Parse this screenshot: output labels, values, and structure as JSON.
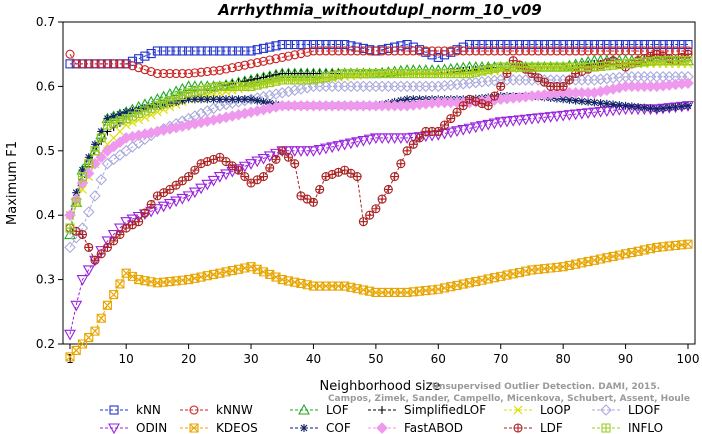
{
  "chart_data": {
    "type": "line",
    "title": "Arrhythmia_withoutdupl_norm_10_v09",
    "xlabel": "Neighborhood size",
    "ylabel": "Maximum F1",
    "xlim": [
      1,
      100
    ],
    "ylim": [
      0.2,
      0.7
    ],
    "xticks": [
      1,
      10,
      20,
      30,
      40,
      50,
      60,
      70,
      80,
      90,
      100
    ],
    "yticks": [
      0.2,
      0.3,
      0.4,
      0.5,
      0.6,
      0.7
    ],
    "grid": false,
    "legend_position": "bottom",
    "watermark": [
      "Unsupervised Outlier Detection. DAMI, 2015.",
      "Campos, Zimek, Sander, Campello, Micenkova, Schubert, Assent, Houle"
    ],
    "series": [
      {
        "name": "kNN",
        "color": "#2233cc",
        "marker": "square",
        "x": [
          1,
          5,
          10,
          15,
          20,
          25,
          30,
          35,
          40,
          45,
          50,
          55,
          60,
          65,
          70,
          75,
          80,
          85,
          90,
          95,
          100
        ],
        "y": [
          0.635,
          0.635,
          0.635,
          0.655,
          0.655,
          0.655,
          0.655,
          0.665,
          0.665,
          0.665,
          0.655,
          0.665,
          0.645,
          0.665,
          0.665,
          0.665,
          0.665,
          0.665,
          0.665,
          0.665,
          0.665
        ]
      },
      {
        "name": "kNNW",
        "color": "#cc2222",
        "marker": "circle",
        "x": [
          1,
          2,
          5,
          10,
          15,
          20,
          25,
          30,
          35,
          40,
          45,
          50,
          55,
          60,
          65,
          70,
          75,
          80,
          85,
          90,
          95,
          100
        ],
        "y": [
          0.65,
          0.635,
          0.635,
          0.635,
          0.62,
          0.62,
          0.625,
          0.635,
          0.645,
          0.655,
          0.655,
          0.655,
          0.655,
          0.655,
          0.655,
          0.655,
          0.655,
          0.655,
          0.655,
          0.655,
          0.655,
          0.655
        ]
      },
      {
        "name": "LOF",
        "color": "#22aa22",
        "marker": "triangle",
        "x": [
          1,
          3,
          5,
          7,
          10,
          15,
          20,
          25,
          30,
          35,
          40,
          45,
          50,
          55,
          60,
          65,
          70,
          75,
          80,
          85,
          90,
          95,
          100
        ],
        "y": [
          0.37,
          0.47,
          0.5,
          0.55,
          0.56,
          0.58,
          0.6,
          0.6,
          0.61,
          0.62,
          0.62,
          0.62,
          0.62,
          0.625,
          0.625,
          0.63,
          0.63,
          0.63,
          0.63,
          0.64,
          0.64,
          0.64,
          0.64
        ]
      },
      {
        "name": "SimplifiedLOF",
        "color": "#000000",
        "marker": "plus",
        "x": [
          1,
          3,
          5,
          7,
          10,
          15,
          20,
          25,
          30,
          35,
          40,
          45,
          50,
          55,
          60,
          65,
          70,
          75,
          80,
          85,
          90,
          95,
          100
        ],
        "y": [
          0.4,
          0.45,
          0.5,
          0.53,
          0.55,
          0.57,
          0.59,
          0.6,
          0.61,
          0.62,
          0.62,
          0.62,
          0.62,
          0.62,
          0.62,
          0.625,
          0.63,
          0.63,
          0.63,
          0.635,
          0.635,
          0.64,
          0.64
        ]
      },
      {
        "name": "LoOP",
        "color": "#dddd00",
        "marker": "x",
        "x": [
          1,
          3,
          5,
          7,
          10,
          15,
          20,
          25,
          30,
          35,
          40,
          45,
          50,
          55,
          60,
          65,
          70,
          75,
          80,
          85,
          90,
          95,
          100
        ],
        "y": [
          0.4,
          0.44,
          0.48,
          0.51,
          0.54,
          0.56,
          0.58,
          0.59,
          0.6,
          0.61,
          0.61,
          0.615,
          0.62,
          0.62,
          0.62,
          0.62,
          0.625,
          0.63,
          0.63,
          0.63,
          0.635,
          0.635,
          0.635
        ]
      },
      {
        "name": "LDOF",
        "color": "#aaaadd",
        "marker": "diamond",
        "x": [
          1,
          3,
          5,
          7,
          10,
          15,
          20,
          25,
          30,
          35,
          40,
          45,
          50,
          55,
          60,
          65,
          70,
          75,
          80,
          85,
          90,
          95,
          100
        ],
        "y": [
          0.35,
          0.38,
          0.43,
          0.48,
          0.5,
          0.53,
          0.55,
          0.57,
          0.58,
          0.59,
          0.6,
          0.6,
          0.6,
          0.6,
          0.6,
          0.605,
          0.61,
          0.61,
          0.61,
          0.61,
          0.615,
          0.615,
          0.615
        ]
      },
      {
        "name": "ODIN",
        "color": "#9922dd",
        "marker": "triangle-down",
        "x": [
          1,
          2,
          3,
          5,
          7,
          10,
          15,
          20,
          25,
          30,
          35,
          40,
          45,
          50,
          55,
          60,
          65,
          70,
          75,
          80,
          85,
          90,
          95,
          100
        ],
        "y": [
          0.215,
          0.26,
          0.3,
          0.33,
          0.36,
          0.39,
          0.41,
          0.43,
          0.46,
          0.48,
          0.5,
          0.5,
          0.51,
          0.52,
          0.52,
          0.525,
          0.535,
          0.545,
          0.55,
          0.555,
          0.56,
          0.565,
          0.565,
          0.57
        ]
      },
      {
        "name": "KDEOS",
        "color": "#e8a500",
        "marker": "square-x",
        "x": [
          1,
          2,
          3,
          5,
          7,
          10,
          12,
          15,
          20,
          25,
          30,
          35,
          40,
          45,
          50,
          55,
          60,
          65,
          70,
          75,
          80,
          85,
          90,
          95,
          100
        ],
        "y": [
          0.18,
          0.19,
          0.2,
          0.22,
          0.26,
          0.31,
          0.3,
          0.295,
          0.3,
          0.31,
          0.32,
          0.3,
          0.29,
          0.29,
          0.28,
          0.28,
          0.285,
          0.295,
          0.305,
          0.315,
          0.32,
          0.33,
          0.34,
          0.35,
          0.355
        ]
      },
      {
        "name": "COF",
        "color": "#112266",
        "marker": "asterisk",
        "x": [
          1,
          3,
          5,
          7,
          10,
          15,
          20,
          25,
          30,
          35,
          40,
          45,
          50,
          55,
          60,
          65,
          70,
          75,
          80,
          85,
          90,
          95,
          100
        ],
        "y": [
          0.4,
          0.47,
          0.51,
          0.55,
          0.56,
          0.57,
          0.58,
          0.58,
          0.58,
          0.57,
          0.57,
          0.57,
          0.57,
          0.58,
          0.58,
          0.58,
          0.585,
          0.585,
          0.58,
          0.575,
          0.57,
          0.565,
          0.57
        ]
      },
      {
        "name": "FastABOD",
        "color": "#ee99ee",
        "marker": "diamond-filled",
        "x": [
          1,
          3,
          5,
          7,
          10,
          15,
          20,
          25,
          30,
          35,
          40,
          45,
          50,
          55,
          60,
          65,
          70,
          75,
          80,
          85,
          90,
          95,
          100
        ],
        "y": [
          0.4,
          0.45,
          0.48,
          0.5,
          0.52,
          0.53,
          0.54,
          0.55,
          0.56,
          0.57,
          0.57,
          0.57,
          0.57,
          0.57,
          0.575,
          0.575,
          0.58,
          0.585,
          0.59,
          0.59,
          0.6,
          0.6,
          0.605
        ]
      },
      {
        "name": "LDF",
        "color": "#aa2222",
        "marker": "circle-plus",
        "x": [
          1,
          3,
          5,
          7,
          10,
          12,
          15,
          17,
          20,
          22,
          25,
          28,
          30,
          32,
          35,
          37,
          38,
          40,
          42,
          45,
          47,
          48,
          50,
          52,
          55,
          58,
          60,
          62,
          65,
          68,
          70,
          72,
          75,
          78,
          80,
          82,
          85,
          88,
          90,
          92,
          95,
          98,
          100
        ],
        "y": [
          0.38,
          0.37,
          0.33,
          0.35,
          0.38,
          0.39,
          0.43,
          0.44,
          0.46,
          0.48,
          0.49,
          0.47,
          0.45,
          0.46,
          0.5,
          0.48,
          0.43,
          0.42,
          0.46,
          0.47,
          0.46,
          0.39,
          0.41,
          0.44,
          0.5,
          0.53,
          0.53,
          0.55,
          0.58,
          0.57,
          0.6,
          0.64,
          0.62,
          0.6,
          0.6,
          0.62,
          0.63,
          0.64,
          0.63,
          0.64,
          0.65,
          0.64,
          0.65
        ]
      },
      {
        "name": "INFLO",
        "color": "#99cc22",
        "marker": "square-star",
        "x": [
          1,
          3,
          5,
          7,
          10,
          15,
          20,
          25,
          30,
          35,
          40,
          45,
          50,
          55,
          60,
          65,
          70,
          75,
          80,
          85,
          90,
          95,
          100
        ],
        "y": [
          0.38,
          0.46,
          0.5,
          0.54,
          0.55,
          0.57,
          0.59,
          0.6,
          0.6,
          0.61,
          0.61,
          0.62,
          0.62,
          0.62,
          0.62,
          0.62,
          0.63,
          0.63,
          0.63,
          0.63,
          0.635,
          0.64,
          0.64
        ]
      }
    ]
  }
}
